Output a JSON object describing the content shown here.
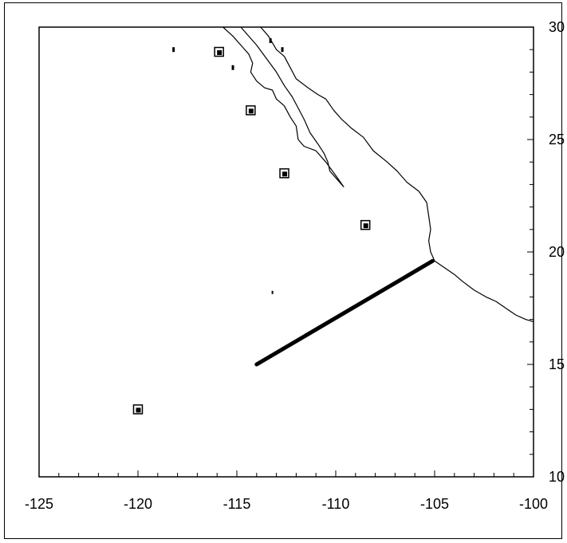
{
  "chart_data": {
    "type": "map",
    "x_axis": {
      "range": [
        -125,
        -100
      ],
      "major_ticks": [
        -125,
        -120,
        -115,
        -110,
        -105,
        -100
      ],
      "labels": [
        "-125",
        "-120",
        "-115",
        "-110",
        "-105",
        "-100"
      ],
      "minor_step": 1
    },
    "y_axis": {
      "range": [
        10,
        30
      ],
      "position": "right",
      "major_ticks": [
        10,
        15,
        20,
        25,
        30
      ],
      "labels": [
        "10",
        "15",
        "20",
        "25",
        "30"
      ],
      "minor_step": 1
    },
    "coastline_outer": [
      [
        -115.7,
        30
      ],
      [
        -115.2,
        29.6
      ],
      [
        -114.8,
        29.2
      ],
      [
        -114.4,
        28.8
      ],
      [
        -114.2,
        28.4
      ],
      [
        -114.3,
        28.0
      ],
      [
        -114.0,
        27.6
      ],
      [
        -113.6,
        27.3
      ],
      [
        -113.2,
        27.2
      ],
      [
        -113.0,
        26.8
      ],
      [
        -112.6,
        26.5
      ],
      [
        -112.3,
        26.0
      ],
      [
        -112.0,
        25.6
      ],
      [
        -111.9,
        25.0
      ],
      [
        -111.6,
        24.7
      ],
      [
        -111.0,
        24.5
      ],
      [
        -110.5,
        24.0
      ],
      [
        -110.0,
        23.4
      ],
      [
        -109.6,
        22.9
      ],
      [
        -109.9,
        23.2
      ],
      [
        -110.3,
        23.6
      ],
      [
        -110.4,
        24.0
      ],
      [
        -110.6,
        24.4
      ],
      [
        -110.9,
        24.8
      ],
      [
        -111.3,
        25.3
      ],
      [
        -111.6,
        25.9
      ],
      [
        -111.9,
        26.4
      ],
      [
        -112.2,
        26.9
      ],
      [
        -112.6,
        27.4
      ],
      [
        -113.0,
        28.0
      ],
      [
        -113.5,
        28.6
      ],
      [
        -114.0,
        29.2
      ],
      [
        -114.5,
        29.7
      ],
      [
        -114.8,
        30
      ]
    ],
    "coastline_mainland": [
      [
        -113.8,
        30
      ],
      [
        -113.4,
        29.6
      ],
      [
        -113.0,
        29.0
      ],
      [
        -112.6,
        28.7
      ],
      [
        -112.3,
        28.2
      ],
      [
        -112.0,
        27.7
      ],
      [
        -111.4,
        27.3
      ],
      [
        -110.9,
        27.0
      ],
      [
        -110.5,
        26.8
      ],
      [
        -110.1,
        26.3
      ],
      [
        -109.7,
        25.9
      ],
      [
        -109.2,
        25.5
      ],
      [
        -108.6,
        25.1
      ],
      [
        -108.1,
        24.5
      ],
      [
        -107.4,
        24.0
      ],
      [
        -106.9,
        23.6
      ],
      [
        -106.4,
        23.1
      ],
      [
        -105.8,
        22.7
      ],
      [
        -105.4,
        22.2
      ],
      [
        -105.3,
        21.6
      ],
      [
        -105.2,
        21.0
      ],
      [
        -105.3,
        20.5
      ],
      [
        -105.2,
        20.0
      ],
      [
        -105.0,
        19.6
      ],
      [
        -104.5,
        19.3
      ],
      [
        -104.0,
        19.0
      ],
      [
        -103.6,
        18.7
      ],
      [
        -103.0,
        18.3
      ],
      [
        -102.4,
        18.0
      ],
      [
        -101.9,
        17.8
      ],
      [
        -101.4,
        17.5
      ],
      [
        -100.9,
        17.2
      ],
      [
        -100.4,
        17.0
      ],
      [
        -100,
        16.9
      ]
    ],
    "islands": [
      [
        -118.2,
        29.0
      ],
      [
        -115.2,
        28.2
      ],
      [
        -113.3,
        29.4
      ],
      [
        -112.7,
        29.0
      ]
    ],
    "stations": [
      [
        -115.9,
        28.9
      ],
      [
        -114.3,
        26.3
      ],
      [
        -112.6,
        23.5
      ],
      [
        -108.5,
        21.2
      ],
      [
        -120.0,
        13.0
      ]
    ],
    "track": [
      [
        -114.0,
        15.0
      ],
      [
        -105.1,
        19.6
      ]
    ],
    "small_mark": [
      -113.2,
      18.2
    ]
  }
}
